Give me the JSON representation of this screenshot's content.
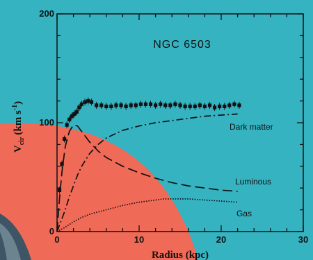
{
  "chart_data": {
    "type": "line",
    "title": "NGC 6503",
    "xlabel": "Radius (kpc)",
    "ylabel": "V",
    "ylabel_sub": "cir",
    "ylabel_unit": "(km s",
    "ylabel_exp": "-1",
    "ylabel_close": ")",
    "xlim": [
      0,
      30
    ],
    "ylim": [
      0,
      200
    ],
    "x_ticks": [
      0,
      10,
      20,
      30
    ],
    "y_ticks": [
      0,
      100,
      200
    ],
    "x_tick_labels": [
      "0",
      "10",
      "20",
      "30"
    ],
    "y_tick_labels": [
      "0",
      "100",
      "200"
    ],
    "observed": {
      "x": [
        0.3,
        0.6,
        0.9,
        1.2,
        1.5,
        1.8,
        2.1,
        2.4,
        2.7,
        3.0,
        3.4,
        3.8,
        4.2,
        4.8,
        5.4,
        6.0,
        6.6,
        7.2,
        7.8,
        8.4,
        9.0,
        9.6,
        10.2,
        10.8,
        11.4,
        12.0,
        12.6,
        13.2,
        13.8,
        14.4,
        15.0,
        15.6,
        16.2,
        16.8,
        17.4,
        18.0,
        18.6,
        19.2,
        19.8,
        20.4,
        21.0,
        21.6,
        22.2
      ],
      "y": [
        38,
        62,
        85,
        98,
        103,
        106,
        108,
        110,
        114,
        117,
        119,
        120,
        119,
        116,
        116,
        115,
        115,
        116,
        116,
        115,
        116,
        116,
        117,
        117,
        117,
        116,
        117,
        116,
        116,
        117,
        116,
        115,
        115,
        115,
        116,
        115,
        116,
        114,
        115,
        115,
        116,
        117,
        116
      ]
    },
    "series": [
      {
        "name": "Dark matter",
        "style": "dash-dot",
        "x": [
          0,
          0.5,
          1,
          1.5,
          2,
          2.5,
          3,
          4,
          5,
          6,
          8,
          10,
          12,
          14,
          16,
          18,
          20,
          22
        ],
        "y": [
          0,
          10,
          20,
          32,
          42,
          52,
          60,
          72,
          80,
          86,
          93,
          97,
          100,
          102,
          104,
          106,
          107,
          108
        ]
      },
      {
        "name": "Luminous",
        "style": "long-dash",
        "x": [
          0,
          0.3,
          0.6,
          1,
          1.5,
          2,
          2.5,
          3,
          4,
          5,
          6,
          8,
          10,
          12,
          14,
          16,
          18,
          20,
          22
        ],
        "y": [
          0,
          30,
          55,
          78,
          92,
          98,
          97,
          92,
          82,
          74,
          68,
          60,
          54,
          49,
          45,
          42,
          40,
          38,
          37
        ]
      },
      {
        "name": "Gas",
        "style": "dotted",
        "x": [
          0,
          1,
          2,
          3,
          4,
          6,
          8,
          10,
          12,
          13,
          14,
          16,
          18,
          20,
          22
        ],
        "y": [
          0,
          4,
          9,
          13,
          16,
          20,
          24,
          27,
          29,
          30,
          30,
          30,
          29,
          28,
          27
        ]
      }
    ],
    "grid": false,
    "legend": "labels next to curves",
    "colors": {
      "background": "#36b3c1",
      "overlay": "#f06a58",
      "ink": "#111111"
    }
  }
}
